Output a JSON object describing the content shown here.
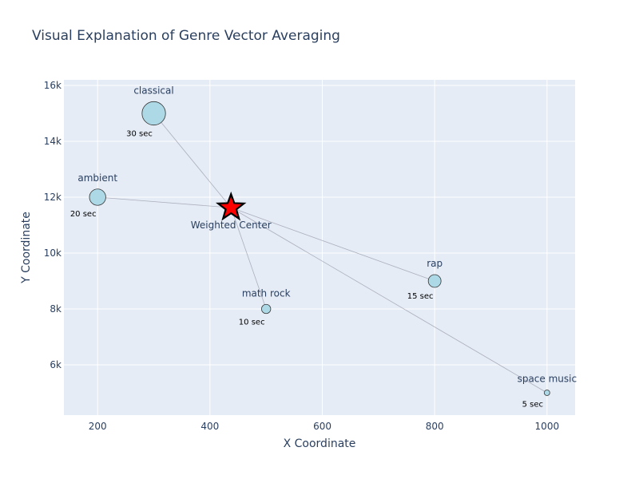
{
  "chart_data": {
    "type": "scatter",
    "title": "Visual Explanation of Genre Vector Averaging",
    "xlabel": "X Coordinate",
    "ylabel": "Y Coordinate",
    "xlim": [
      140,
      1050
    ],
    "ylim": [
      4200,
      16200
    ],
    "x_ticks": [
      200,
      400,
      600,
      800,
      1000
    ],
    "x_tick_labels": [
      "200",
      "400",
      "600",
      "800",
      "1000"
    ],
    "y_ticks": [
      6000,
      8000,
      10000,
      12000,
      14000,
      16000
    ],
    "y_tick_labels": [
      "6k",
      "8k",
      "10k",
      "12k",
      "14k",
      "16k"
    ],
    "grid": true,
    "points": [
      {
        "label": "classical",
        "x": 300,
        "y": 15000,
        "duration_sec": 30,
        "duration_label": "30 sec"
      },
      {
        "label": "ambient",
        "x": 200,
        "y": 12000,
        "duration_sec": 20,
        "duration_label": "20 sec"
      },
      {
        "label": "rap",
        "x": 800,
        "y": 9000,
        "duration_sec": 15,
        "duration_label": "15 sec"
      },
      {
        "label": "math rock",
        "x": 500,
        "y": 8000,
        "duration_sec": 10,
        "duration_label": "10 sec"
      },
      {
        "label": "space music",
        "x": 1000,
        "y": 5000,
        "duration_sec": 5,
        "duration_label": "5 sec"
      }
    ],
    "center": {
      "label": "Weighted Center",
      "x": 437.5,
      "y": 11625
    },
    "colors": {
      "plot_bg": "#e5ecf6",
      "grid": "#ffffff",
      "point_fill": "#add8e6",
      "point_stroke": "#333333",
      "connector": "#a0a0b0",
      "center_fill": "#ff0000",
      "center_stroke": "#000000",
      "text": "#2a3f5f"
    }
  }
}
